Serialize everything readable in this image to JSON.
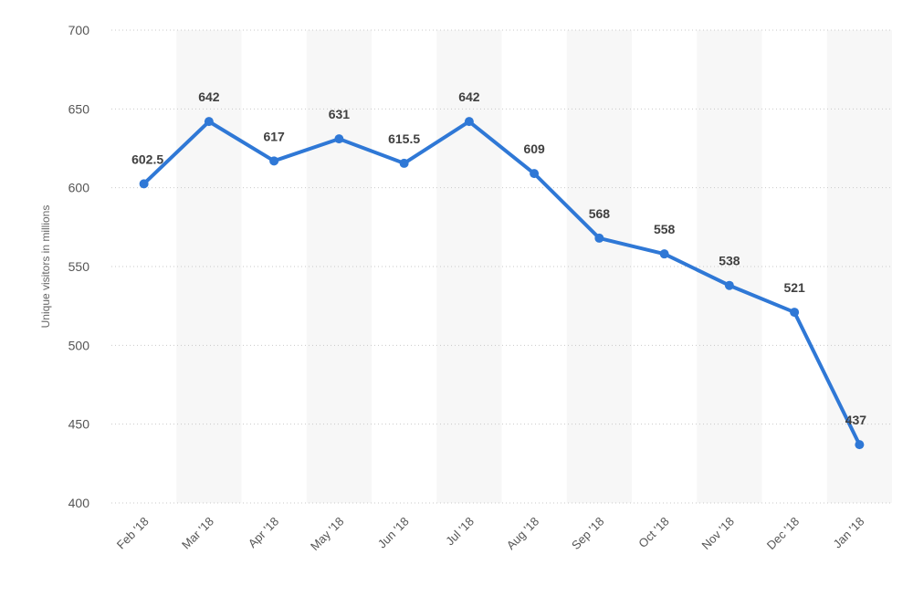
{
  "chart_data": {
    "type": "line",
    "categories": [
      "Feb '18",
      "Mar '18",
      "Apr '18",
      "May '18",
      "Jun '18",
      "Jul '18",
      "Aug '18",
      "Sep '18",
      "Oct '18",
      "Nov '18",
      "Dec '18",
      "Jan '18"
    ],
    "series": [
      {
        "values": [
          602.5,
          642,
          617,
          631,
          615.5,
          642,
          609,
          568,
          558,
          538,
          521,
          437
        ],
        "labels": [
          "602.5",
          "642",
          "617",
          "631",
          "615.5",
          "642",
          "609",
          "568",
          "558",
          "538",
          "521",
          "437"
        ],
        "color": "#2f78d6"
      }
    ],
    "ylabel": "Unique visitors in millions",
    "ylim": [
      400,
      700
    ],
    "yticks": [
      400,
      450,
      500,
      550,
      600,
      650,
      700
    ],
    "ytick_labels": [
      "400",
      "450",
      "500",
      "550",
      "600",
      "650",
      "700"
    ],
    "grid": true,
    "legend": "none",
    "band_color": "#f7f7f7"
  }
}
